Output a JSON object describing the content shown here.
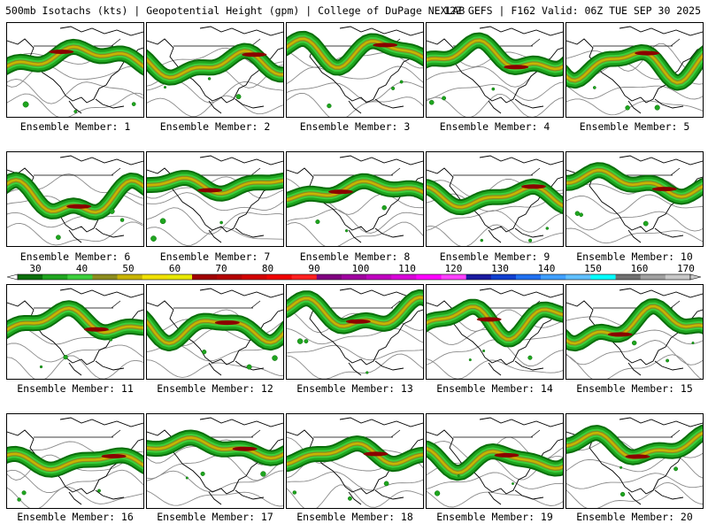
{
  "header": {
    "title": "500mb Isotachs (kts) | Geopotential Height (gpm) | College of DuPage NEXLAB",
    "run_info": "12Z GEFS | F162 Valid: 06Z TUE SEP 30 2025"
  },
  "panels": [
    {
      "label": "Ensemble Member: 1"
    },
    {
      "label": "Ensemble Member: 2"
    },
    {
      "label": "Ensemble Member: 3"
    },
    {
      "label": "Ensemble Member: 4"
    },
    {
      "label": "Ensemble Member: 5"
    },
    {
      "label": "Ensemble Member: 6"
    },
    {
      "label": "Ensemble Member: 7"
    },
    {
      "label": "Ensemble Member: 8"
    },
    {
      "label": "Ensemble Member: 9"
    },
    {
      "label": "Ensemble Member: 10"
    },
    {
      "label": "Ensemble Member: 11"
    },
    {
      "label": "Ensemble Member: 12"
    },
    {
      "label": "Ensemble Member: 13"
    },
    {
      "label": "Ensemble Member: 14"
    },
    {
      "label": "Ensemble Member: 15"
    },
    {
      "label": "Ensemble Member: 16"
    },
    {
      "label": "Ensemble Member: 17"
    },
    {
      "label": "Ensemble Member: 18"
    },
    {
      "label": "Ensemble Member: 19"
    },
    {
      "label": "Ensemble Member: 20"
    }
  ],
  "colorbar": {
    "labels": [
      "30",
      "40",
      "50",
      "60",
      "70",
      "80",
      "90",
      "100",
      "110",
      "120",
      "130",
      "140",
      "150",
      "160",
      "170"
    ],
    "colors": [
      "#0a6e0a",
      "#1fa51f",
      "#3ccf3c",
      "#8c8c1e",
      "#c8b400",
      "#f0e000",
      "#e8e800",
      "#a00000",
      "#b40000",
      "#d20000",
      "#f00000",
      "#ff2020",
      "#800080",
      "#a000a0",
      "#c000c0",
      "#d800d8",
      "#ff00ff",
      "#ff40ff",
      "#1a1aa0",
      "#1040d0",
      "#2070f0",
      "#40a0ff",
      "#60c0ff",
      "#00ffff",
      "#707070",
      "#a0a0a0",
      "#c8c8c8"
    ]
  }
}
